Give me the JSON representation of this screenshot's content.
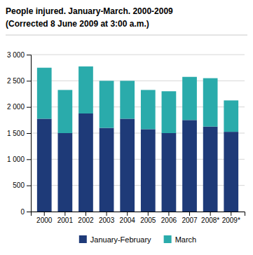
{
  "chart_data": {
    "type": "bar",
    "stacked": true,
    "title": "People injured. January-March. 2000-2009",
    "subtitle": "(Corrected 8 June 2009 at 3:00 a.m.)",
    "categories": [
      "2000",
      "2001",
      "2002",
      "2003",
      "2004",
      "2005",
      "2006",
      "2007",
      "2008*",
      "2009*"
    ],
    "series": [
      {
        "name": "January-February",
        "color": "#1e3a78",
        "values": [
          1775,
          1500,
          1875,
          1600,
          1775,
          1575,
          1500,
          1750,
          1625,
          1525
        ]
      },
      {
        "name": "March",
        "color": "#2aabab",
        "values": [
          975,
          825,
          900,
          900,
          725,
          750,
          800,
          825,
          925,
          600
        ]
      }
    ],
    "ylim": [
      0,
      3000
    ],
    "yticks": [
      0,
      500,
      {
        "value": 1000,
        "label": "1 000"
      },
      {
        "value": 1500,
        "label": "1 500"
      },
      {
        "value": 2000,
        "label": "2 000"
      },
      {
        "value": 2500,
        "label": "2 500"
      },
      {
        "value": 3000,
        "label": "3 000"
      }
    ],
    "grid": true,
    "legend": "bottom"
  }
}
